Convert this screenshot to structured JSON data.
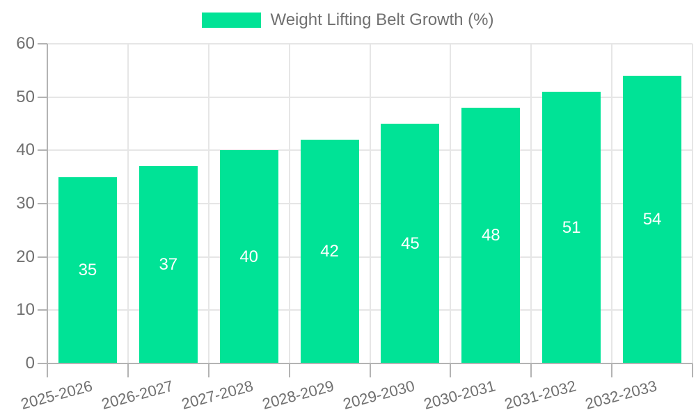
{
  "chart_data": {
    "type": "bar",
    "title": "Weight Lifting Belt Growth (%)",
    "categories": [
      "2025-2026",
      "2026-2027",
      "2027-2028",
      "2028-2029",
      "2029-2030",
      "2030-2031",
      "2031-2032",
      "2032-2033"
    ],
    "values": [
      35,
      37,
      40,
      42,
      45,
      48,
      51,
      54
    ],
    "series": [
      {
        "name": "Weight Lifting Belt Growth (%)",
        "values": [
          35,
          37,
          40,
          42,
          45,
          48,
          51,
          54
        ]
      }
    ],
    "xlabel": "",
    "ylabel": "",
    "ylim": [
      0,
      60
    ],
    "yticks": [
      0,
      10,
      20,
      30,
      40,
      50,
      60
    ],
    "grid": true,
    "legend_position": "top-center",
    "x_label_rotation_deg": -15,
    "data_labels": "inside-center",
    "colors": {
      "bar": "#00E396",
      "data_label": "#FFFFFF",
      "axis_text": "#707070",
      "grid_line": "#E6E6E6",
      "axis_line": "#B3B3B3",
      "background": "#FFFFFF"
    }
  }
}
